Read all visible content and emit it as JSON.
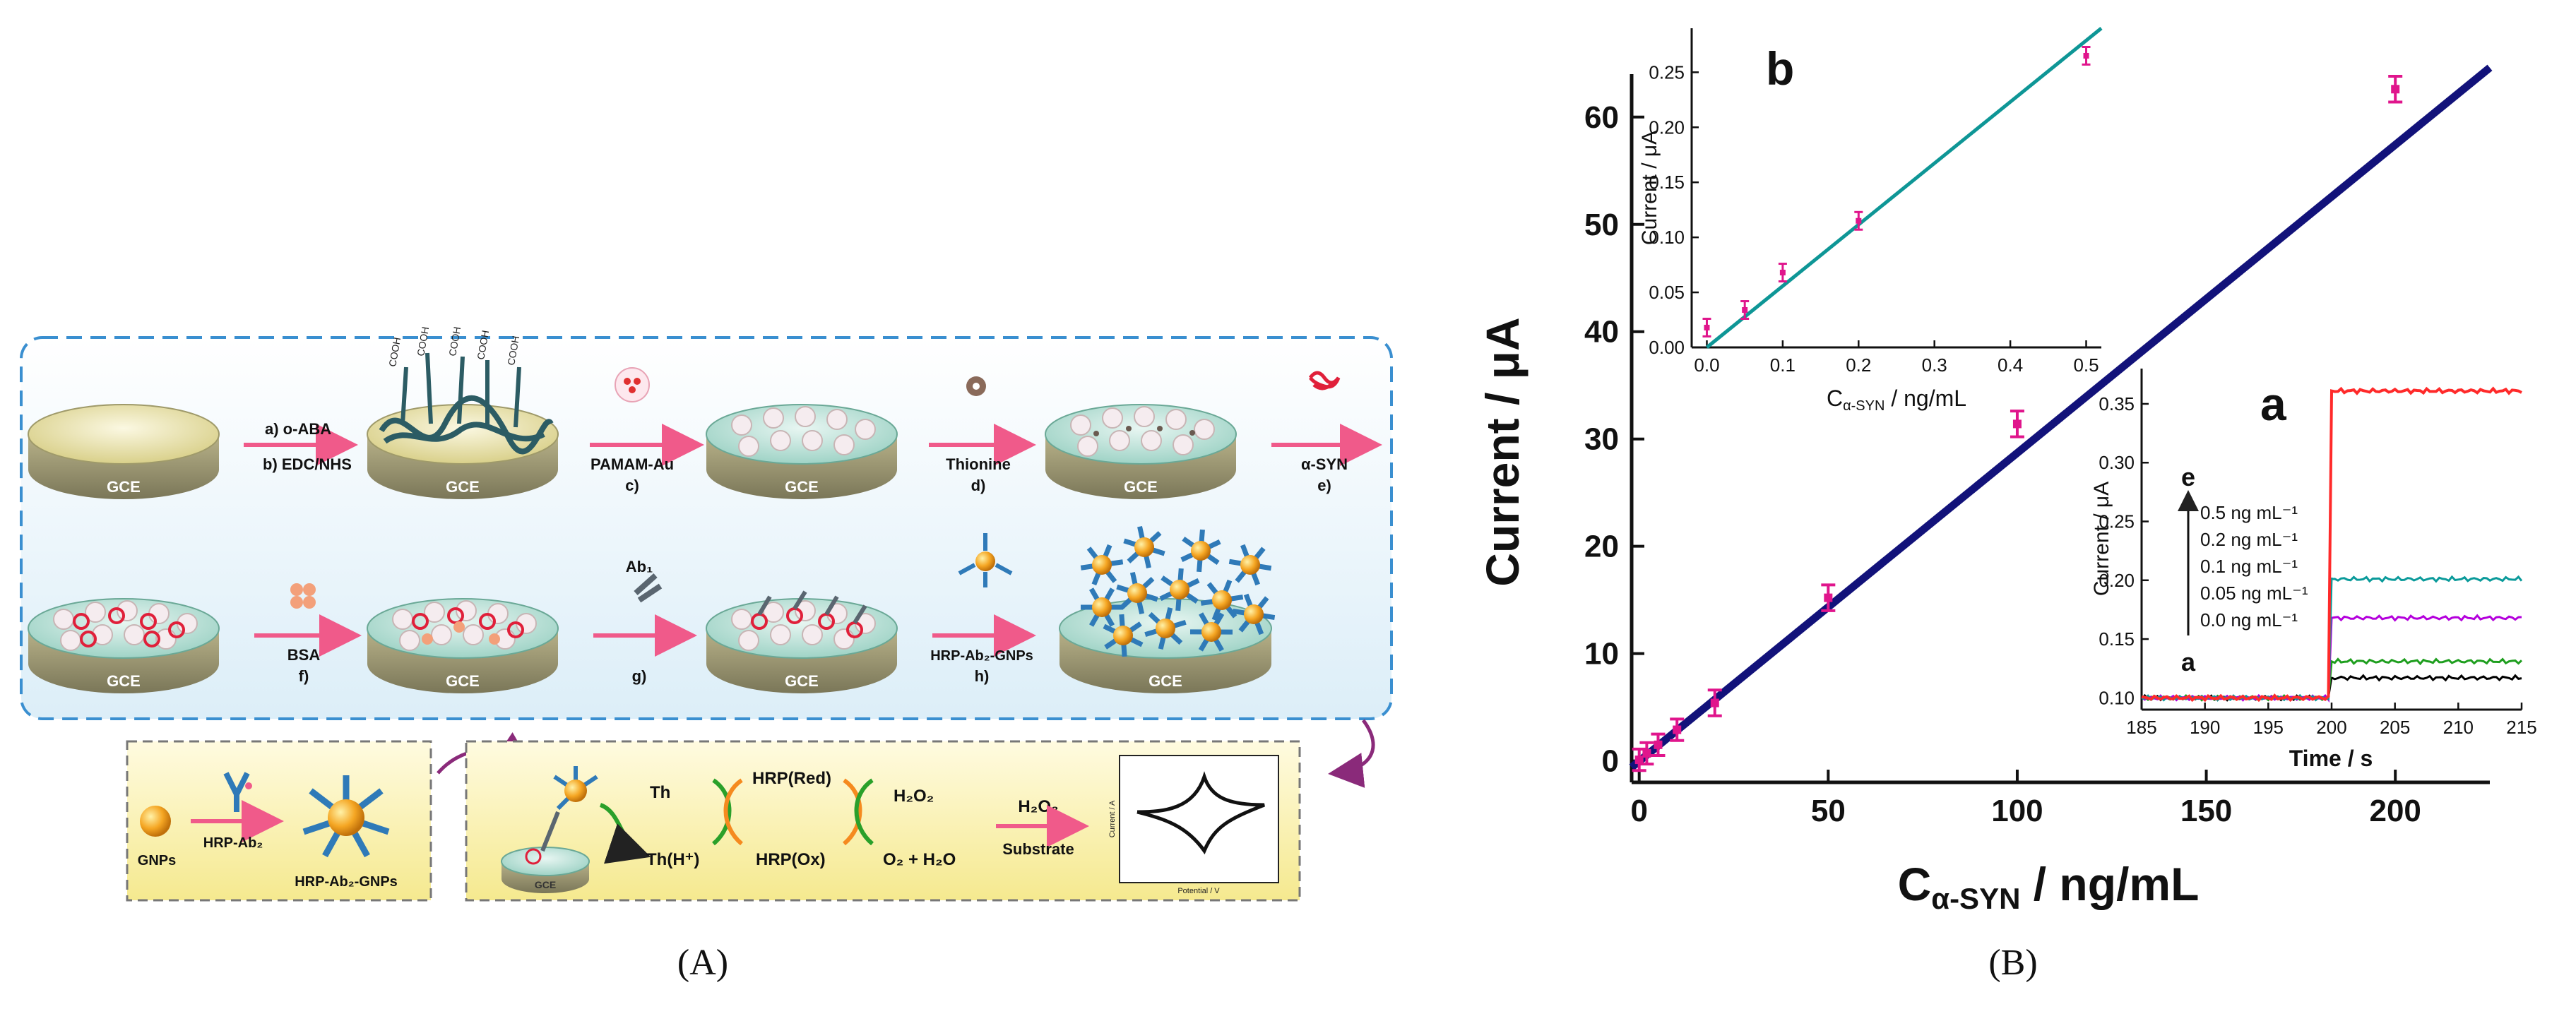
{
  "schematic": {
    "row1": {
      "electrode_label": "GCE",
      "step_a": "a) o-ABA",
      "step_b": "b) EDC/NHS",
      "cooh": "COOH",
      "step_c_reagent": "PAMAM-Au",
      "step_c": "c)",
      "step_d_reagent": "Thionine",
      "step_d": "d)",
      "step_e_reagent": "α-SYN",
      "step_e": "e)"
    },
    "row2": {
      "step_f_reagent": "BSA",
      "step_f": "f)",
      "step_g_reagent": "Ab₁",
      "step_g": "g)",
      "step_h_reagent": "HRP-Ab₂-GNPs",
      "step_h": "h)"
    },
    "conjugate": {
      "gnps": "GNPs",
      "reagent": "HRP-Ab₂",
      "product": "HRP-Ab₂-GNPs"
    },
    "mechanism": {
      "electrode": "GCE",
      "th": "Th",
      "th_h": "Th(H⁺)",
      "hrp_red": "HRP(Red)",
      "hrp_ox": "HRP(Ox)",
      "h2o2": "H₂O₂",
      "o2_h2o": "O₂ + H₂O",
      "arrow_top": "H₂O₂",
      "arrow_bottom": "Substrate",
      "cv_ylabel": "Current / A",
      "cv_xlabel": "Potential / V"
    },
    "caption": "(A)"
  },
  "chart_data": [
    {
      "type": "line",
      "panel": "main",
      "xlabel_main": "C",
      "xlabel_sub": "α-SYN",
      "xlabel_unit": " / ng/mL",
      "ylabel": "Current / μA",
      "xlim": [
        -2,
        225
      ],
      "ylim": [
        -2,
        64
      ],
      "xticks": [
        0,
        50,
        100,
        150,
        200
      ],
      "yticks": [
        0,
        10,
        20,
        30,
        40,
        50,
        60
      ],
      "fit": {
        "x": [
          -2,
          225
        ],
        "y": [
          -0.6,
          64.6
        ]
      },
      "points": [
        {
          "x": 0,
          "y": 0.1,
          "err": 1.0
        },
        {
          "x": 2,
          "y": 0.7,
          "err": 1.0
        },
        {
          "x": 5,
          "y": 1.5,
          "err": 1.0
        },
        {
          "x": 10,
          "y": 2.9,
          "err": 1.0
        },
        {
          "x": 20,
          "y": 5.4,
          "err": 1.2
        },
        {
          "x": 50,
          "y": 15.2,
          "err": 1.2
        },
        {
          "x": 100,
          "y": 31.4,
          "err": 1.2
        },
        {
          "x": 200,
          "y": 62.6,
          "err": 1.2
        }
      ],
      "caption": "(B)"
    },
    {
      "type": "line",
      "panel": "inset-b",
      "label": "b",
      "xlabel_main": "C",
      "xlabel_sub": "α-SYN",
      "xlabel_unit": " / ng/mL",
      "ylabel": "Current / μA",
      "xlim": [
        -0.02,
        0.52
      ],
      "ylim": [
        0,
        0.29
      ],
      "xticks": [
        "0.0",
        "0.1",
        "0.2",
        "0.3",
        "0.4",
        "0.5"
      ],
      "yticks": [
        "0.00",
        "0.05",
        "0.10",
        "0.15",
        "0.20",
        "0.25"
      ],
      "fit": {
        "x": [
          -0.02,
          0.52
        ],
        "y": [
          -0.011,
          0.29
        ]
      },
      "points": [
        {
          "x": 0.0,
          "y": 0.018,
          "err": 0.008
        },
        {
          "x": 0.05,
          "y": 0.034,
          "err": 0.008
        },
        {
          "x": 0.1,
          "y": 0.068,
          "err": 0.008
        },
        {
          "x": 0.2,
          "y": 0.115,
          "err": 0.008
        },
        {
          "x": 0.5,
          "y": 0.265,
          "err": 0.008
        }
      ]
    },
    {
      "type": "line",
      "panel": "inset-a",
      "label": "a",
      "xlabel": "Time / s",
      "ylabel": "Current / μA",
      "xlim": [
        185,
        215
      ],
      "ylim": [
        0.09,
        0.38
      ],
      "xticks": [
        185,
        190,
        195,
        200,
        205,
        210,
        215
      ],
      "yticks": [
        "0.10",
        "0.15",
        "0.20",
        "0.25",
        "0.30",
        "0.35"
      ],
      "baseline": 0.1,
      "step_time": 200,
      "series": [
        {
          "name": "0.0 ng mL⁻¹",
          "color": "#000000",
          "plateau": 0.117
        },
        {
          "name": "0.05 ng mL⁻¹",
          "color": "#1e9e1e",
          "plateau": 0.131
        },
        {
          "name": "0.1 ng mL⁻¹",
          "color": "#b400dc",
          "plateau": 0.168
        },
        {
          "name": "0.2 ng mL⁻¹",
          "color": "#0a9a9a",
          "plateau": 0.201
        },
        {
          "name": "0.5 ng mL⁻¹",
          "color": "#ff2a2a",
          "plateau": 0.361
        }
      ],
      "legend_order": [
        "0.5 ng mL⁻¹",
        "0.2 ng mL⁻¹",
        "0.1 ng mL⁻¹",
        "0.05 ng mL⁻¹",
        "0.0 ng mL⁻¹"
      ],
      "arrow_top": "e",
      "arrow_bottom": "a"
    }
  ],
  "colors": {
    "fit_main": "#12127a",
    "fit_inset": "#0e9696",
    "points": "#e0158c",
    "dash_border": "#3a8fd0"
  }
}
